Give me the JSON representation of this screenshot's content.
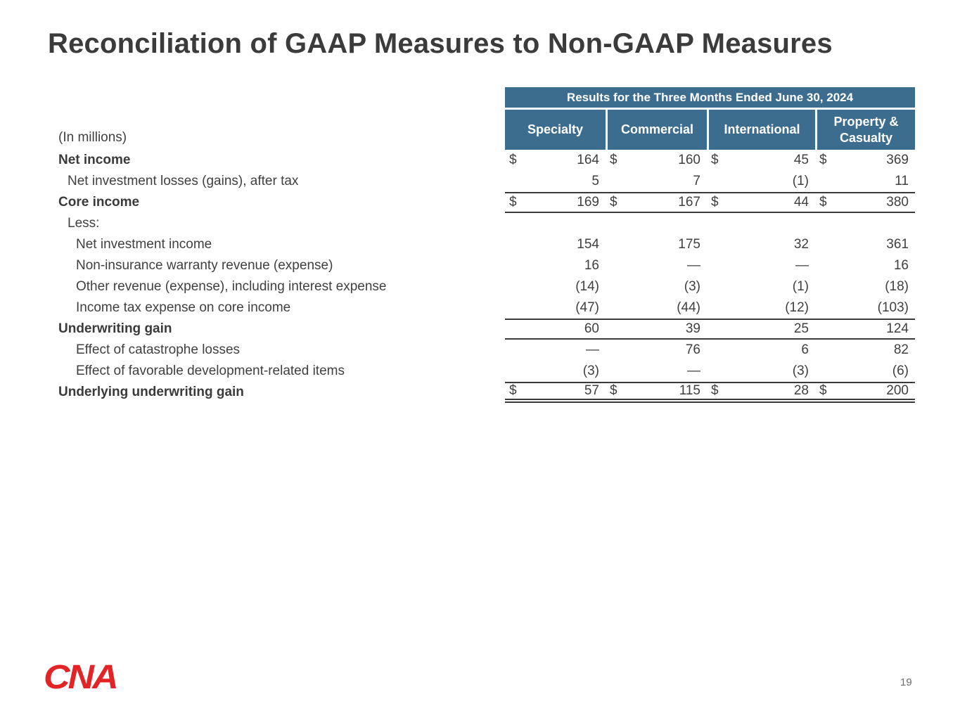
{
  "slide": {
    "title": "Reconciliation of GAAP Measures to Non-GAAP Measures",
    "page_number": "19",
    "logo_text": "CNA"
  },
  "table": {
    "banner": "Results for the Three Months Ended June 30, 2024",
    "units_label": "(In millions)",
    "columns": [
      "Specialty",
      "Commercial",
      "International",
      "Property & Casualty"
    ],
    "rows": [
      {
        "label": "Net income",
        "bold": true,
        "indent": 0,
        "dollar": true,
        "values": [
          "164",
          "160",
          "45",
          "369"
        ]
      },
      {
        "label": "Net investment losses (gains), after tax",
        "bold": false,
        "indent": 1,
        "dollar": false,
        "values": [
          "5",
          "7",
          "(1)",
          "11"
        ]
      },
      {
        "label": "Core income",
        "bold": true,
        "indent": 0,
        "dollar": true,
        "values": [
          "169",
          "167",
          "44",
          "380"
        ],
        "border_top": true,
        "border_bottom": true
      },
      {
        "label": "Less:",
        "bold": false,
        "indent": 1,
        "dollar": false,
        "values": [
          "",
          "",
          "",
          ""
        ]
      },
      {
        "label": "Net investment income",
        "bold": false,
        "indent": 2,
        "dollar": false,
        "values": [
          "154",
          "175",
          "32",
          "361"
        ]
      },
      {
        "label": "Non-insurance warranty revenue (expense)",
        "bold": false,
        "indent": 2,
        "dollar": false,
        "values": [
          "16",
          "—",
          "—",
          "16"
        ]
      },
      {
        "label": "Other revenue (expense), including interest expense",
        "bold": false,
        "indent": 2,
        "dollar": false,
        "values": [
          "(14)",
          "(3)",
          "(1)",
          "(18)"
        ]
      },
      {
        "label": "Income tax expense on core income",
        "bold": false,
        "indent": 2,
        "dollar": false,
        "values": [
          "(47)",
          "(44)",
          "(12)",
          "(103)"
        ]
      },
      {
        "label": "Underwriting gain",
        "bold": true,
        "indent": 0,
        "dollar": false,
        "values": [
          "60",
          "39",
          "25",
          "124"
        ],
        "border_top": true,
        "border_bottom": true
      },
      {
        "label": "Effect of catastrophe losses",
        "bold": false,
        "indent": 2,
        "dollar": false,
        "values": [
          "—",
          "76",
          "6",
          "82"
        ]
      },
      {
        "label": "Effect of favorable development-related items",
        "bold": false,
        "indent": 2,
        "dollar": false,
        "values": [
          "(3)",
          "—",
          "(3)",
          "(6)"
        ]
      },
      {
        "label": "Underlying underwriting gain",
        "bold": true,
        "indent": 0,
        "dollar": true,
        "values": [
          "57",
          "115",
          "28",
          "200"
        ],
        "border_top": true,
        "double_bottom": true
      }
    ]
  },
  "colors": {
    "header_blue": "#3d6d8e",
    "logo_red": "#e32426",
    "text_dark": "#3b3b3b",
    "rule_dark": "#3a3a3a"
  }
}
